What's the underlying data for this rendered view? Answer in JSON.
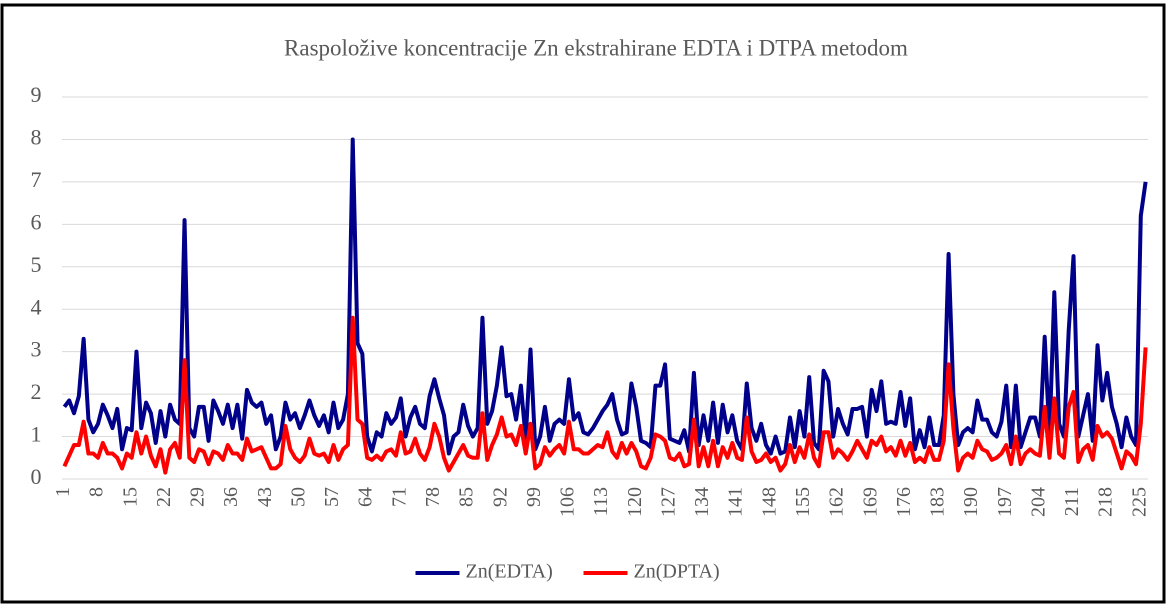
{
  "chart_data": {
    "type": "line",
    "title": "Raspoložive koncentracije Zn ekstrahirane EDTA i DTPA metodom",
    "x": [
      1,
      2,
      3,
      4,
      5,
      6,
      7,
      8,
      9,
      10,
      11,
      12,
      13,
      14,
      15,
      16,
      17,
      18,
      19,
      20,
      21,
      22,
      23,
      24,
      25,
      26,
      27,
      28,
      29,
      30,
      31,
      32,
      33,
      34,
      35,
      36,
      37,
      38,
      39,
      40,
      41,
      42,
      43,
      44,
      45,
      46,
      47,
      48,
      49,
      50,
      51,
      52,
      53,
      54,
      55,
      56,
      57,
      58,
      59,
      60,
      61,
      62,
      63,
      64,
      65,
      66,
      67,
      68,
      69,
      70,
      71,
      72,
      73,
      74,
      75,
      76,
      77,
      78,
      79,
      80,
      81,
      82,
      83,
      84,
      85,
      86,
      87,
      88,
      89,
      90,
      91,
      92,
      93,
      94,
      95,
      96,
      97,
      98,
      99,
      100,
      101,
      102,
      103,
      104,
      105,
      106,
      107,
      108,
      109,
      110,
      111,
      112,
      113,
      114,
      115,
      116,
      117,
      118,
      119,
      120,
      121,
      122,
      123,
      124,
      125,
      126,
      127,
      128,
      129,
      130,
      131,
      132,
      133,
      134,
      135,
      136,
      137,
      138,
      139,
      140,
      141,
      142,
      143,
      144,
      145,
      146,
      147,
      148,
      149,
      150,
      151,
      152,
      153,
      154,
      155,
      156,
      157,
      158,
      159,
      160,
      161,
      162,
      163,
      164,
      165,
      166,
      167,
      168,
      169,
      170,
      171,
      172,
      173,
      174,
      175,
      176,
      177,
      178,
      179,
      180,
      181,
      182,
      183,
      184,
      185,
      186,
      187,
      188,
      189,
      190,
      191,
      192,
      193,
      194,
      195,
      196,
      197,
      198,
      199,
      200,
      201,
      202,
      203,
      204,
      205,
      206,
      207,
      208,
      209,
      210,
      211,
      212,
      213,
      214,
      215,
      216,
      217,
      218,
      219,
      220,
      221,
      222,
      223,
      224,
      225,
      226
    ],
    "xlim": [
      0.5,
      226.5
    ],
    "xticks": [
      1,
      8,
      15,
      22,
      29,
      36,
      43,
      50,
      57,
      64,
      71,
      78,
      85,
      92,
      99,
      106,
      113,
      120,
      127,
      134,
      141,
      148,
      155,
      162,
      169,
      176,
      183,
      190,
      197,
      204,
      211,
      218,
      225
    ],
    "ylim": [
      0,
      9
    ],
    "yticks": [
      0,
      1,
      2,
      3,
      4,
      5,
      6,
      7,
      8,
      9
    ],
    "grid": true,
    "legend": "bottom",
    "series": [
      {
        "name": "Zn(EDTA)",
        "color": "#00008b",
        "values": [
          1.7,
          1.85,
          1.55,
          1.95,
          3.3,
          1.4,
          1.1,
          1.3,
          1.75,
          1.5,
          1.2,
          1.65,
          0.7,
          1.2,
          1.15,
          3.0,
          1.2,
          1.8,
          1.55,
          0.85,
          1.6,
          1.0,
          1.75,
          1.4,
          1.3,
          6.1,
          1.2,
          1.0,
          1.7,
          1.7,
          0.9,
          1.85,
          1.6,
          1.3,
          1.75,
          1.2,
          1.75,
          0.95,
          2.1,
          1.8,
          1.7,
          1.8,
          1.3,
          1.5,
          0.7,
          1.0,
          1.8,
          1.4,
          1.55,
          1.2,
          1.5,
          1.85,
          1.5,
          1.25,
          1.5,
          1.1,
          1.8,
          1.2,
          1.4,
          2.0,
          8.0,
          3.2,
          2.95,
          1.0,
          0.65,
          1.1,
          1.0,
          1.55,
          1.3,
          1.45,
          1.9,
          1.0,
          1.45,
          1.7,
          1.3,
          1.2,
          1.95,
          2.35,
          1.9,
          1.5,
          0.6,
          1.0,
          1.1,
          1.75,
          1.25,
          1.0,
          1.2,
          3.8,
          1.3,
          1.6,
          2.2,
          3.1,
          1.95,
          2.0,
          1.4,
          2.2,
          0.95,
          3.05,
          0.7,
          1.0,
          1.7,
          0.9,
          1.3,
          1.4,
          1.3,
          2.35,
          1.4,
          1.55,
          1.1,
          1.05,
          1.2,
          1.4,
          1.6,
          1.75,
          2.0,
          1.4,
          1.05,
          1.1,
          2.25,
          1.7,
          0.9,
          0.85,
          0.75,
          2.2,
          2.2,
          2.7,
          0.95,
          0.9,
          0.85,
          1.15,
          0.65,
          2.5,
          0.8,
          1.5,
          0.9,
          1.8,
          0.85,
          1.75,
          1.1,
          1.5,
          0.9,
          0.7,
          2.25,
          1.2,
          0.9,
          1.3,
          0.8,
          0.6,
          1.0,
          0.6,
          0.65,
          1.45,
          0.75,
          1.6,
          1.0,
          2.4,
          0.85,
          0.7,
          2.55,
          2.3,
          1.0,
          1.65,
          1.3,
          1.05,
          1.65,
          1.65,
          1.7,
          1.0,
          2.1,
          1.6,
          2.3,
          1.3,
          1.35,
          1.3,
          2.05,
          1.25,
          1.9,
          0.7,
          1.15,
          0.75,
          1.45,
          0.8,
          0.8,
          1.5,
          5.3,
          2.0,
          0.8,
          1.1,
          1.2,
          1.1,
          1.85,
          1.4,
          1.4,
          1.1,
          1.0,
          1.35,
          2.2,
          0.75,
          2.2,
          0.75,
          1.1,
          1.45,
          1.45,
          1.0,
          3.35,
          1.0,
          4.4,
          1.3,
          1.0,
          3.5,
          5.25,
          1.0,
          1.5,
          2.0,
          0.9,
          3.15,
          1.85,
          2.5,
          1.7,
          1.3,
          0.75,
          1.45,
          1.0,
          0.8,
          6.2,
          7.0
        ]
      },
      {
        "name": "Zn(DPTA)",
        "color": "#ff0000",
        "values": [
          0.3,
          0.55,
          0.8,
          0.8,
          1.35,
          0.6,
          0.6,
          0.5,
          0.85,
          0.6,
          0.6,
          0.5,
          0.25,
          0.6,
          0.5,
          1.1,
          0.6,
          1.0,
          0.55,
          0.3,
          0.7,
          0.15,
          0.7,
          0.85,
          0.5,
          2.8,
          0.5,
          0.4,
          0.7,
          0.65,
          0.35,
          0.65,
          0.6,
          0.45,
          0.8,
          0.6,
          0.6,
          0.45,
          0.95,
          0.65,
          0.7,
          0.75,
          0.5,
          0.25,
          0.25,
          0.35,
          1.25,
          0.7,
          0.5,
          0.4,
          0.55,
          0.95,
          0.6,
          0.55,
          0.6,
          0.4,
          0.8,
          0.45,
          0.7,
          0.8,
          3.8,
          1.4,
          1.3,
          0.5,
          0.45,
          0.55,
          0.45,
          0.65,
          0.7,
          0.55,
          1.1,
          0.6,
          0.65,
          0.95,
          0.6,
          0.45,
          0.75,
          1.3,
          1.0,
          0.5,
          0.2,
          0.4,
          0.6,
          0.8,
          0.55,
          0.5,
          0.5,
          1.55,
          0.45,
          0.8,
          1.05,
          1.45,
          1.0,
          1.05,
          0.8,
          1.25,
          0.6,
          1.3,
          0.25,
          0.35,
          0.75,
          0.55,
          0.7,
          0.8,
          0.6,
          1.35,
          0.7,
          0.7,
          0.6,
          0.6,
          0.7,
          0.8,
          0.75,
          1.1,
          0.65,
          0.5,
          0.85,
          0.6,
          0.85,
          0.65,
          0.3,
          0.25,
          0.5,
          1.05,
          1.0,
          0.9,
          0.5,
          0.45,
          0.6,
          0.3,
          0.35,
          1.4,
          0.3,
          0.75,
          0.3,
          0.9,
          0.3,
          0.75,
          0.5,
          0.85,
          0.5,
          0.45,
          1.45,
          0.65,
          0.4,
          0.45,
          0.6,
          0.4,
          0.5,
          0.2,
          0.35,
          0.8,
          0.4,
          0.75,
          0.5,
          1.05,
          0.5,
          0.3,
          1.1,
          1.1,
          0.5,
          0.7,
          0.6,
          0.45,
          0.65,
          0.9,
          0.7,
          0.5,
          0.9,
          0.8,
          1.0,
          0.65,
          0.75,
          0.55,
          0.9,
          0.55,
          0.85,
          0.4,
          0.5,
          0.4,
          0.75,
          0.45,
          0.45,
          0.9,
          2.7,
          1.2,
          0.2,
          0.5,
          0.6,
          0.5,
          0.9,
          0.7,
          0.65,
          0.45,
          0.5,
          0.6,
          0.8,
          0.35,
          1.0,
          0.35,
          0.6,
          0.7,
          0.6,
          0.55,
          1.7,
          0.5,
          1.9,
          0.6,
          0.5,
          1.7,
          2.05,
          0.4,
          0.7,
          0.8,
          0.45,
          1.25,
          1.0,
          1.1,
          0.95,
          0.6,
          0.25,
          0.65,
          0.55,
          0.35,
          1.3,
          3.1
        ]
      }
    ]
  }
}
